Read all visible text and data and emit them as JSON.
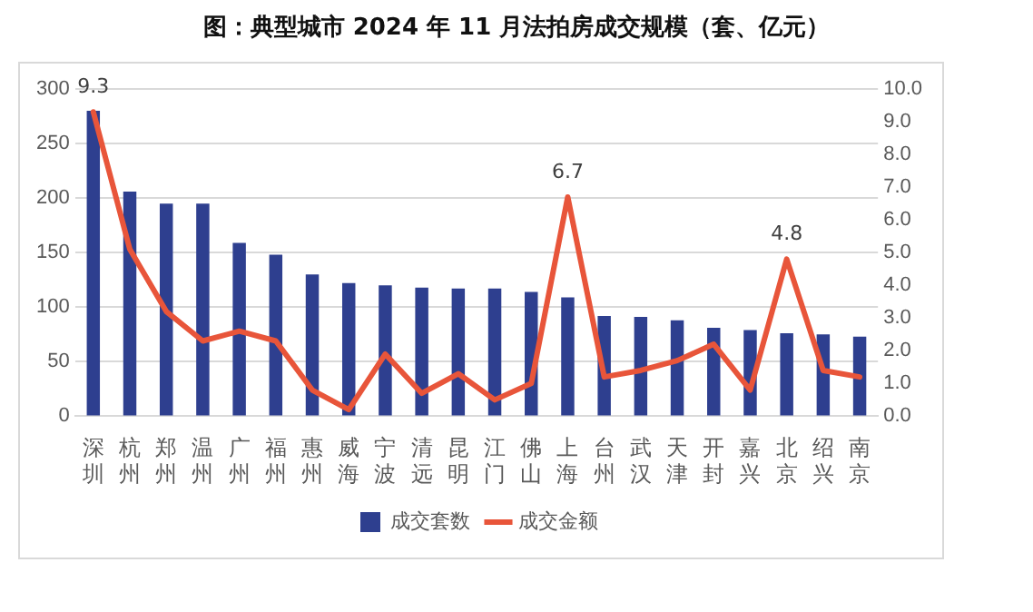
{
  "chart_data": {
    "type": "bar",
    "title": "图：典型城市 2024 年 11 月法拍房成交规模（套、亿元）",
    "categories": [
      "深圳",
      "杭州",
      "郑州",
      "温州",
      "广州",
      "福州",
      "惠州",
      "威海",
      "宁波",
      "清远",
      "昆明",
      "江门",
      "佛山",
      "上海",
      "台州",
      "武汉",
      "天津",
      "开封",
      "嘉兴",
      "北京",
      "绍兴",
      "南京"
    ],
    "series": [
      {
        "name": "成交套数",
        "color": "#2e3f8f",
        "values": [
          280,
          206,
          195,
          195,
          159,
          148,
          130,
          122,
          120,
          118,
          117,
          117,
          114,
          109,
          92,
          91,
          88,
          81,
          79,
          76,
          75,
          73
        ]
      },
      {
        "name": "成交金额",
        "type": "line",
        "axis": "y2",
        "color": "#e8553a",
        "values": [
          9.3,
          5.1,
          3.2,
          2.3,
          2.6,
          2.3,
          0.8,
          0.2,
          1.9,
          0.7,
          1.3,
          0.5,
          1.0,
          6.7,
          1.2,
          1.4,
          1.7,
          2.2,
          0.8,
          4.8,
          1.4,
          1.2
        ],
        "value_labels": [
          "9.3",
          null,
          null,
          null,
          null,
          null,
          null,
          null,
          null,
          null,
          null,
          null,
          null,
          "6.7",
          null,
          null,
          null,
          null,
          null,
          "4.8",
          null,
          null
        ]
      }
    ],
    "ylim": [
      0,
      300
    ],
    "yticks": [
      0,
      50,
      100,
      150,
      200,
      250,
      300
    ],
    "y2lim": [
      0,
      10
    ],
    "y2ticks": [
      {
        "value": 0,
        "label": "0.0"
      },
      {
        "value": 1,
        "label": "1.0"
      },
      {
        "value": 2,
        "label": "2.0"
      },
      {
        "value": 3,
        "label": "3.0"
      },
      {
        "value": 4,
        "label": "4.0"
      },
      {
        "value": 5,
        "label": "5.0"
      },
      {
        "value": 6,
        "label": "6.0"
      },
      {
        "value": 7,
        "label": "7.0"
      },
      {
        "value": 8,
        "label": "8.0"
      },
      {
        "value": 9,
        "label": "9.0"
      },
      {
        "value": 10,
        "label": "10.0"
      }
    ],
    "grid": "y",
    "legend": "bottom",
    "marker": "none",
    "line_style": "solid"
  }
}
